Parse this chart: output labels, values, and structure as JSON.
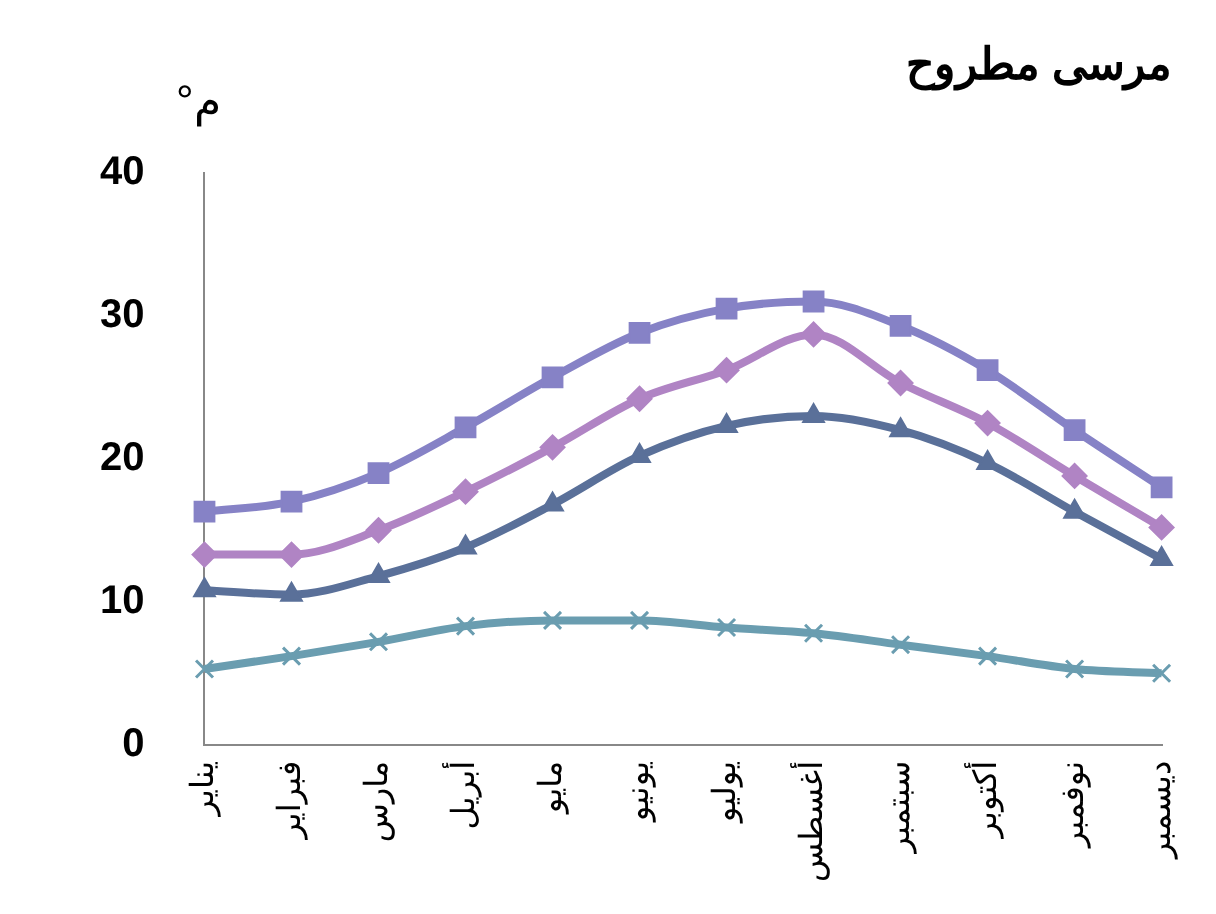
{
  "chart_data": {
    "type": "line",
    "title": "مرسى مطروح",
    "ylabel": "م°",
    "categories": [
      "يناير",
      "فبراير",
      "مارس",
      "أبريل",
      "مايو",
      "يونيو",
      "يوليو",
      "أغسطس",
      "سبتمبر",
      "أكتوبر",
      "نوفمبر",
      "ديسمبر"
    ],
    "series": [
      {
        "color": "#8682c6",
        "marker": "square",
        "values": [
          16.3,
          17.0,
          19.0,
          22.2,
          25.7,
          28.8,
          30.5,
          31.0,
          29.3,
          26.2,
          22.0,
          18.0
        ]
      },
      {
        "color": "#b084c4",
        "marker": "diamond",
        "values": [
          13.3,
          13.3,
          15.0,
          17.7,
          20.8,
          24.2,
          26.2,
          28.7,
          25.3,
          22.5,
          18.8,
          15.2
        ]
      },
      {
        "color": "#5a7099",
        "marker": "triangle",
        "values": [
          10.8,
          10.5,
          11.8,
          13.8,
          16.8,
          20.2,
          22.3,
          23.0,
          22.0,
          19.7,
          16.3,
          13.0
        ]
      },
      {
        "color": "#6a9db0",
        "marker": "cross",
        "values": [
          5.3,
          6.2,
          7.2,
          8.3,
          8.7,
          8.7,
          8.2,
          7.8,
          7.0,
          6.2,
          5.3,
          5.0
        ]
      }
    ],
    "ylim": [
      0,
      40
    ],
    "yticks": [
      0,
      10,
      20,
      30,
      40
    ],
    "grid": false,
    "legend": false
  }
}
